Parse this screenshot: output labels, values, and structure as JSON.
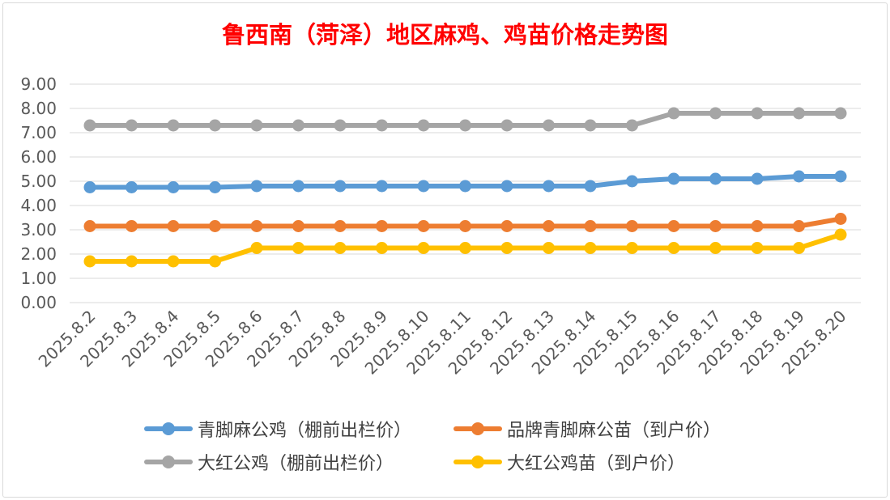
{
  "chart_data": {
    "type": "line",
    "title": "鲁西南（菏泽）地区麻鸡、鸡苗价格走势图",
    "xlabel": "",
    "ylabel": "",
    "ylim": [
      0,
      9
    ],
    "yticks": [
      "0.00",
      "1.00",
      "2.00",
      "3.00",
      "4.00",
      "5.00",
      "6.00",
      "7.00",
      "8.00",
      "9.00"
    ],
    "categories": [
      "2025.8.2",
      "2025.8.3",
      "2025.8.4",
      "2025.8.5",
      "2025.8.6",
      "2025.8.7",
      "2025.8.8",
      "2025.8.9",
      "2025.8.10",
      "2025.8.11",
      "2025.8.12",
      "2025.8.13",
      "2025.8.14",
      "2025.8.15",
      "2025.8.16",
      "2025.8.17",
      "2025.8.18",
      "2025.8.19",
      "2025.8.20"
    ],
    "series": [
      {
        "name": "青脚麻公鸡（棚前出栏价）",
        "color": "#5b9bd5",
        "values": [
          4.75,
          4.75,
          4.75,
          4.75,
          4.8,
          4.8,
          4.8,
          4.8,
          4.8,
          4.8,
          4.8,
          4.8,
          4.8,
          5.0,
          5.1,
          5.1,
          5.1,
          5.2,
          5.2
        ]
      },
      {
        "name": "品牌青脚麻公苗（到户价）",
        "color": "#ed7d31",
        "values": [
          3.15,
          3.15,
          3.15,
          3.15,
          3.15,
          3.15,
          3.15,
          3.15,
          3.15,
          3.15,
          3.15,
          3.15,
          3.15,
          3.15,
          3.15,
          3.15,
          3.15,
          3.15,
          3.45
        ]
      },
      {
        "name": "大红公鸡（棚前出栏价）",
        "color": "#a5a5a5",
        "values": [
          7.3,
          7.3,
          7.3,
          7.3,
          7.3,
          7.3,
          7.3,
          7.3,
          7.3,
          7.3,
          7.3,
          7.3,
          7.3,
          7.3,
          7.8,
          7.8,
          7.8,
          7.8,
          7.8
        ]
      },
      {
        "name": "大红公鸡苗（到户价）",
        "color": "#ffc000",
        "values": [
          1.7,
          1.7,
          1.7,
          1.7,
          2.25,
          2.25,
          2.25,
          2.25,
          2.25,
          2.25,
          2.25,
          2.25,
          2.25,
          2.25,
          2.25,
          2.25,
          2.25,
          2.25,
          2.8
        ]
      }
    ],
    "grid": true,
    "legend_position": "bottom"
  }
}
